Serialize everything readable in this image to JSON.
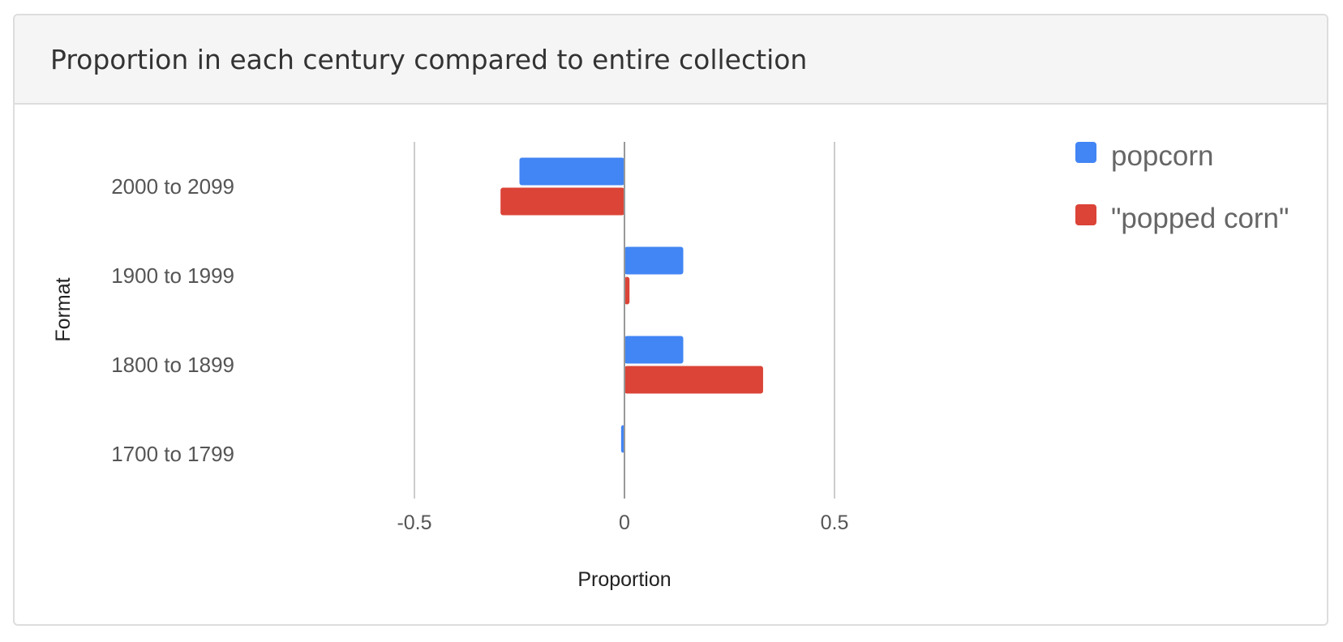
{
  "panel": {
    "title": "Proportion in each century compared to entire collection"
  },
  "chart_data": {
    "type": "bar",
    "orientation": "horizontal",
    "title": "",
    "xlabel": "Proportion",
    "ylabel": "Format",
    "categories": [
      "2000 to 2099",
      "1900 to 1999",
      "1800 to 1899",
      "1700 to 1799"
    ],
    "series": [
      {
        "name": "popcorn",
        "color": "#4285f4",
        "values": [
          -0.25,
          0.14,
          0.14,
          -0.008
        ]
      },
      {
        "name": "\"popped corn\"",
        "color": "#db4437",
        "values": [
          -0.295,
          0.012,
          0.33,
          0
        ]
      }
    ],
    "xlim": [
      -1,
      1
    ],
    "xticks": [
      -0.5,
      0,
      0.5
    ],
    "xtick_labels": [
      "-0.5",
      "0",
      "0.5"
    ],
    "grid": true,
    "legend": "right"
  }
}
